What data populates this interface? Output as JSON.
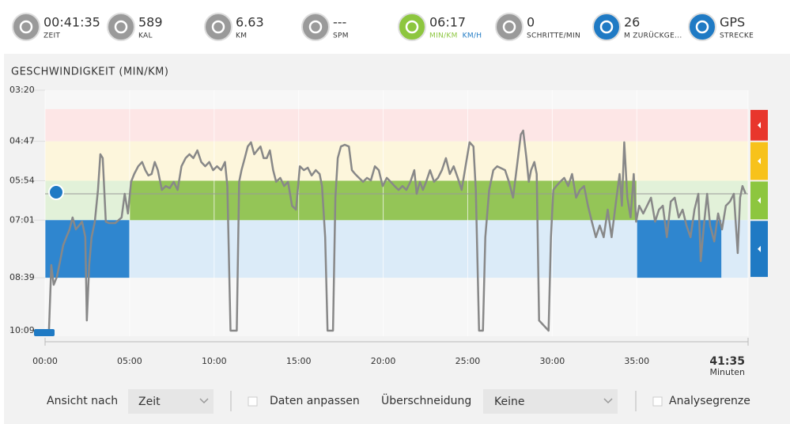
{
  "stats": [
    {
      "value": "00:41:35",
      "labels": [
        "ZEIT"
      ]
    },
    {
      "value": "589",
      "labels": [
        "KAL"
      ]
    },
    {
      "value": "6.63",
      "labels": [
        "KM"
      ]
    },
    {
      "value": "---",
      "labels": [
        "SPM"
      ]
    },
    {
      "value": "06:17",
      "labels": [
        "MIN/KM",
        "KM/H"
      ]
    },
    {
      "value": "0",
      "labels": [
        "SCHRITTE/MIN"
      ]
    },
    {
      "value": "26",
      "labels": [
        "M ZURÜCKGE..."
      ]
    },
    {
      "value": "GPS",
      "labels": [
        "STRECKE"
      ]
    }
  ],
  "chart_data": {
    "type": "line",
    "title": "GESCHWINDIGKEIT (MIN/KM)",
    "xlabel": "Minuten",
    "xlim": [
      0,
      41.583
    ],
    "xticks": [
      {
        "value": 0,
        "label": "00:00"
      },
      {
        "value": 5,
        "label": "05:00"
      },
      {
        "value": 10,
        "label": "10:00"
      },
      {
        "value": 15,
        "label": "15:00"
      },
      {
        "value": 20,
        "label": "20:00"
      },
      {
        "value": 25,
        "label": "25:00"
      },
      {
        "value": 30,
        "label": "30:00"
      },
      {
        "value": 35,
        "label": "35:00"
      },
      {
        "value": 41.583,
        "label": "41:35"
      }
    ],
    "ylim": [
      3.333,
      10.15
    ],
    "y_inverted": true,
    "yticks": [
      {
        "value": 3.333,
        "label": "03:20"
      },
      {
        "value": 4.783,
        "label": "04:47"
      },
      {
        "value": 5.9,
        "label": "05:54"
      },
      {
        "value": 7.017,
        "label": "07:01"
      },
      {
        "value": 8.65,
        "label": "08:39"
      },
      {
        "value": 10.15,
        "label": "10:09"
      }
    ],
    "zones": [
      {
        "from": 3.87,
        "to": 4.783,
        "color": "#fde6e6",
        "tab": "#e8362c"
      },
      {
        "from": 4.783,
        "to": 5.9,
        "color": "#fdf6dc",
        "tab": "#f7c21b"
      },
      {
        "from": 5.9,
        "to": 7.017,
        "color": "#e2f1d9",
        "tab": "#8dc63f"
      },
      {
        "from": 7.017,
        "to": 8.65,
        "color": "#dbebf8",
        "tab": "#1f7ac4"
      }
    ],
    "highlights": [
      {
        "x0": 0,
        "x1": 5,
        "zone": 3,
        "color": "#2f86cf"
      },
      {
        "x0": 5,
        "x1": 35,
        "zone": 2,
        "color": "#94c557"
      },
      {
        "x0": 35,
        "x1": 40,
        "zone": 3,
        "color": "#2f86cf"
      }
    ],
    "average": 6.27,
    "x": [
      0.23,
      0.37,
      0.51,
      0.7,
      0.89,
      1.07,
      1.26,
      1.45,
      1.63,
      1.82,
      2.01,
      2.19,
      2.38,
      2.47,
      2.61,
      2.75,
      2.94,
      3.13,
      3.27,
      3.41,
      3.59,
      3.78,
      4.15,
      4.53,
      4.71,
      4.9,
      5.09,
      5.27,
      5.51,
      5.74,
      5.93,
      6.11,
      6.3,
      6.49,
      6.67,
      6.91,
      7.14,
      7.37,
      7.61,
      7.84,
      8.07,
      8.31,
      8.54,
      8.77,
      9.01,
      9.24,
      9.47,
      9.71,
      9.94,
      10.17,
      10.41,
      10.64,
      10.78,
      10.97,
      11.34,
      11.48,
      11.62,
      11.81,
      11.99,
      12.18,
      12.37,
      12.55,
      12.74,
      12.93,
      13.11,
      13.3,
      13.49,
      13.67,
      13.91,
      14.14,
      14.37,
      14.61,
      14.84,
      15.07,
      15.31,
      15.54,
      15.77,
      16.01,
      16.24,
      16.38,
      16.57,
      16.71,
      17.03,
      17.17,
      17.31,
      17.5,
      17.73,
      17.97,
      18.15,
      18.34,
      18.57,
      18.81,
      19.04,
      19.27,
      19.51,
      19.74,
      19.97,
      20.21,
      20.44,
      20.67,
      20.91,
      21.14,
      21.37,
      21.61,
      21.84,
      21.98,
      22.17,
      22.35,
      22.54,
      22.77,
      23.01,
      23.24,
      23.47,
      23.71,
      23.94,
      24.17,
      24.41,
      24.64,
      24.87,
      25.11,
      25.34,
      25.48,
      25.67,
      25.9,
      26.04,
      26.27,
      26.51,
      26.74,
      27.21,
      27.44,
      27.68,
      27.91,
      28.14,
      28.28,
      28.47,
      28.61,
      28.75,
      28.94,
      29.08,
      29.22,
      29.78,
      29.92,
      30.06,
      30.24,
      30.47,
      30.71,
      30.94,
      31.17,
      31.41,
      31.64,
      31.88,
      32.11,
      32.34,
      32.58,
      32.81,
      33.04,
      33.28,
      33.51,
      33.74,
      33.98,
      34.12,
      34.26,
      34.44,
      34.63,
      34.82,
      34.96,
      35.14,
      35.38,
      35.61,
      35.84,
      36.08,
      36.31,
      36.54,
      36.78,
      37.01,
      37.24,
      37.48,
      37.71,
      37.94,
      38.18,
      38.41,
      38.64,
      38.78,
      38.97,
      39.16,
      39.34,
      39.58,
      39.81,
      40.04,
      40.27,
      40.51,
      40.74,
      40.97,
      41.11,
      41.25,
      41.44
    ],
    "series": [
      {
        "color": "#888888",
        "values": [
          10.15,
          8.29,
          8.85,
          8.62,
          8.18,
          7.73,
          7.5,
          7.28,
          6.94,
          7.28,
          7.17,
          7.06,
          7.5,
          9.86,
          8.29,
          7.5,
          7.06,
          6.16,
          5.15,
          5.26,
          7.06,
          7.1,
          7.1,
          6.94,
          6.27,
          6.83,
          5.93,
          5.71,
          5.49,
          5.37,
          5.6,
          5.75,
          5.71,
          5.37,
          5.6,
          6.16,
          6.05,
          6.11,
          5.93,
          6.16,
          5.49,
          5.26,
          5.15,
          5.26,
          5.04,
          5.37,
          5.49,
          5.37,
          5.6,
          5.49,
          5.6,
          5.37,
          6.05,
          10.15,
          10.15,
          5.93,
          5.6,
          5.26,
          4.93,
          4.81,
          5.15,
          5.04,
          4.93,
          5.26,
          5.26,
          5.04,
          5.6,
          5.93,
          5.82,
          6.05,
          5.93,
          6.61,
          6.72,
          5.49,
          5.6,
          5.53,
          5.75,
          5.6,
          5.71,
          6.05,
          7.5,
          10.15,
          10.15,
          6.38,
          5.26,
          4.93,
          4.88,
          4.93,
          5.6,
          5.71,
          5.82,
          5.93,
          5.82,
          5.89,
          5.49,
          5.6,
          6.05,
          5.82,
          5.93,
          6.05,
          6.16,
          6.05,
          6.16,
          5.93,
          5.6,
          6.27,
          5.93,
          6.16,
          5.93,
          5.6,
          5.93,
          5.82,
          5.6,
          5.26,
          5.71,
          5.49,
          5.82,
          6.16,
          5.49,
          4.81,
          4.93,
          6.16,
          10.15,
          10.15,
          7.5,
          6.16,
          5.6,
          5.49,
          5.6,
          5.93,
          6.38,
          5.49,
          4.59,
          4.48,
          5.26,
          5.93,
          5.6,
          5.37,
          5.71,
          9.86,
          10.15,
          7.5,
          6.16,
          6.05,
          5.93,
          5.82,
          6.05,
          5.71,
          6.38,
          6.16,
          6.05,
          6.61,
          7.06,
          7.5,
          7.17,
          7.5,
          6.72,
          7.5,
          6.61,
          5.71,
          6.61,
          4.81,
          6.38,
          6.94,
          5.71,
          7.06,
          6.61,
          6.83,
          6.61,
          6.38,
          7.06,
          6.72,
          6.61,
          7.5,
          6.49,
          6.38,
          6.94,
          6.72,
          7.17,
          7.5,
          6.72,
          6.27,
          8.18,
          7.17,
          6.27,
          7.17,
          7.62,
          6.83,
          7.28,
          6.61,
          6.49,
          6.27,
          7.95,
          6.38,
          6.05,
          6.27
        ]
      }
    ]
  },
  "controls": {
    "view_label": "Ansicht nach",
    "view_value": "Zeit",
    "fit_label": "Daten anpassen",
    "overlap_label": "Überschneidung",
    "overlap_value": "Keine",
    "limit_label": "Analysegrenze"
  }
}
